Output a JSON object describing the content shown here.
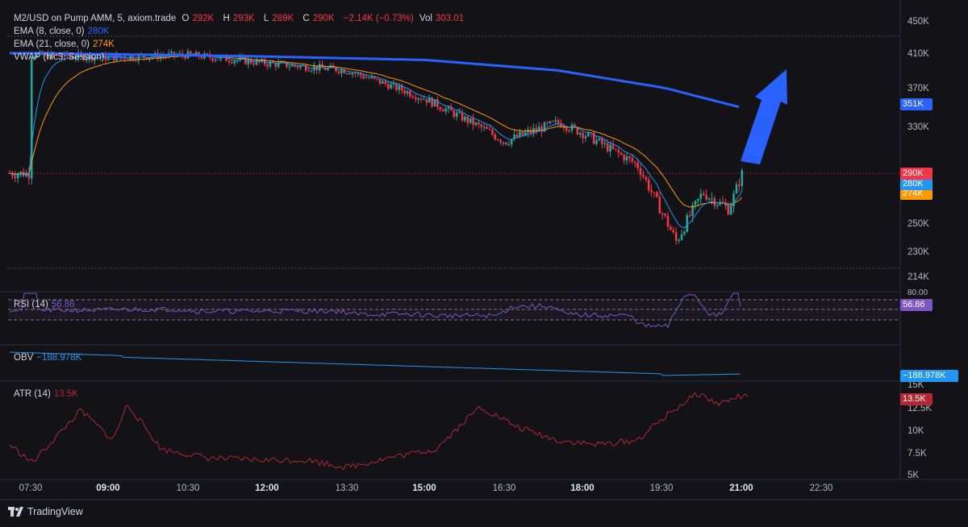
{
  "header": {
    "symbol": "M2/USD on Pump AMM, 5, axiom.trade",
    "o_label": "O",
    "o_val": "292K",
    "h_label": "H",
    "h_val": "293K",
    "l_label": "L",
    "l_val": "289K",
    "c_label": "C",
    "c_val": "290K",
    "change": "−2.14K (−0.73%)",
    "vol_label": "Vol",
    "vol_val": "303.01"
  },
  "indicators": {
    "ema8": {
      "label": "EMA (8, close, 0)",
      "value": "280K"
    },
    "ema21": {
      "label": "EMA (21, close, 0)",
      "value": "274K"
    },
    "vwap": {
      "label": "VWAP (hlc3, Session)",
      "value": "351K"
    },
    "rsi": {
      "label": "RSI (14)",
      "value": "56.86"
    },
    "obv": {
      "label": "OBV",
      "value": "−188.978K"
    },
    "atr": {
      "label": "ATR (14)",
      "value": "13.5K"
    }
  },
  "price_axis": [
    "450K",
    "410K",
    "370K",
    "330K",
    "290K",
    "250K",
    "230K",
    "214K"
  ],
  "rsi_axis": [
    "80.00"
  ],
  "atr_axis": [
    "15K",
    "12.5K",
    "10K",
    "7.5K",
    "5K"
  ],
  "tags": {
    "price": "290K",
    "ema8": "280K",
    "ema21": "274K",
    "vwap": "351K",
    "rsi": "56.86",
    "obv": "−188.978K",
    "atr": "13.5K"
  },
  "time_axis": [
    {
      "label": "07:30",
      "bold": false
    },
    {
      "label": "09:00",
      "bold": true
    },
    {
      "label": "10:30",
      "bold": false
    },
    {
      "label": "12:00",
      "bold": true
    },
    {
      "label": "13:30",
      "bold": false
    },
    {
      "label": "15:00",
      "bold": true
    },
    {
      "label": "16:30",
      "bold": false
    },
    {
      "label": "18:00",
      "bold": true
    },
    {
      "label": "19:30",
      "bold": false
    },
    {
      "label": "21:00",
      "bold": true
    },
    {
      "label": "22:30",
      "bold": false
    }
  ],
  "footer": {
    "brand": "TradingView"
  },
  "colors": {
    "up": "#26a69a",
    "down": "#f23645",
    "vwap": "#2962ff",
    "ema8": "#2196f3",
    "ema21": "#ff9800",
    "rsi": "#7e57c2",
    "obv": "#2196f3",
    "atr": "#b22833",
    "arrow": "#2962ff"
  },
  "chart_data": {
    "type": "candlestick",
    "x_range": [
      "07:30",
      "22:30"
    ],
    "price_ylim": [
      214000,
      450000
    ],
    "price_approx": [
      {
        "t": "07:30",
        "close": 410000
      },
      {
        "t": "09:00",
        "close": 407000
      },
      {
        "t": "10:30",
        "close": 410000
      },
      {
        "t": "12:00",
        "close": 400000
      },
      {
        "t": "13:30",
        "close": 392000
      },
      {
        "t": "15:00",
        "close": 360000
      },
      {
        "t": "16:30",
        "close": 318000
      },
      {
        "t": "17:30",
        "close": 336000
      },
      {
        "t": "18:00",
        "close": 325000
      },
      {
        "t": "19:00",
        "close": 298000
      },
      {
        "t": "19:45",
        "close": 238000
      },
      {
        "t": "20:15",
        "close": 275000
      },
      {
        "t": "20:45",
        "close": 262000
      },
      {
        "t": "21:00",
        "close": 290000
      }
    ],
    "vwap_approx": [
      {
        "t": "07:30",
        "v": 412000
      },
      {
        "t": "12:00",
        "v": 408000
      },
      {
        "t": "15:00",
        "v": 404000
      },
      {
        "t": "17:30",
        "v": 392000
      },
      {
        "t": "19:30",
        "v": 372000
      },
      {
        "t": "21:00",
        "v": 351000
      }
    ],
    "rsi_last": 56.86,
    "obv_last": -188978,
    "atr_ylim": [
      5000,
      15000
    ],
    "atr_last": 13500
  }
}
